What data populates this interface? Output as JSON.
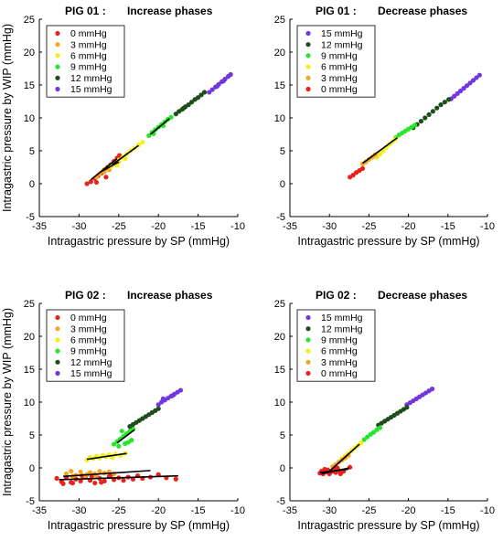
{
  "chart_data": [
    {
      "type": "scatter",
      "panel": "top-left",
      "title_left": "PIG 01 :",
      "title_right": "Increase phases",
      "xlabel": "Intragastric pressure by SP (mmHg)",
      "ylabel": "Intragastric pressure by WIP (mmHg)",
      "xlim": [
        -35,
        -10
      ],
      "ylim": [
        -5,
        25
      ],
      "xticks": [
        -35,
        -30,
        -25,
        -20,
        -15,
        -10
      ],
      "yticks": [
        -5,
        0,
        5,
        10,
        15,
        20,
        25
      ],
      "grid": false,
      "legend_position": "top-left",
      "series": [
        {
          "name": "0 mmHg",
          "color": "#e8231e",
          "x": [
            -29.0,
            -28.5,
            -28.0,
            -27.6,
            -27.2,
            -26.8,
            -26.4,
            -26.0,
            -25.6,
            -25.2,
            -24.9,
            -27.8,
            -26.6
          ],
          "y": [
            0.0,
            0.3,
            0.8,
            1.2,
            1.6,
            2.1,
            2.5,
            2.9,
            3.4,
            3.9,
            4.3,
            0.2,
            1.0
          ]
        },
        {
          "name": "3 mmHg",
          "color": "#f5a623",
          "x": [
            -27.8,
            -27.4,
            -27.0,
            -26.6,
            -26.2,
            -25.8,
            -25.4,
            -25.0,
            -26.8,
            -26.2
          ],
          "y": [
            1.0,
            1.5,
            1.9,
            2.3,
            2.6,
            2.9,
            3.1,
            3.4,
            1.8,
            2.1
          ]
        },
        {
          "name": "6 mmHg",
          "color": "#f4ee1a",
          "x": [
            -26.0,
            -25.5,
            -25.0,
            -24.5,
            -24.0,
            -23.5,
            -23.0,
            -22.5,
            -22.0,
            -25.2,
            -24.2
          ],
          "y": [
            2.6,
            3.0,
            3.6,
            4.0,
            4.5,
            5.0,
            5.4,
            5.9,
            6.3,
            2.8,
            3.8
          ]
        },
        {
          "name": "9 mmHg",
          "color": "#26e62a",
          "x": [
            -21.2,
            -20.8,
            -20.4,
            -20.0,
            -19.6,
            -19.2,
            -18.8,
            -18.4,
            -20.6,
            -19.4
          ],
          "y": [
            7.3,
            7.8,
            8.2,
            8.6,
            9.0,
            9.4,
            9.8,
            10.1,
            7.6,
            8.8
          ]
        },
        {
          "name": "12 mmHg",
          "color": "#1d4d1a",
          "x": [
            -17.8,
            -17.4,
            -17.0,
            -16.6,
            -16.2,
            -15.8,
            -15.4,
            -15.0,
            -14.6,
            -14.2,
            -16.8
          ],
          "y": [
            10.6,
            11.0,
            11.3,
            11.7,
            12.0,
            12.4,
            12.8,
            13.1,
            13.5,
            13.9,
            11.5
          ]
        },
        {
          "name": "15 mmHg",
          "color": "#7236e0",
          "x": [
            -13.6,
            -13.2,
            -12.8,
            -12.4,
            -12.0,
            -11.6,
            -11.2,
            -10.9,
            -12.6,
            -11.8
          ],
          "y": [
            13.9,
            14.3,
            14.7,
            15.1,
            15.5,
            15.9,
            16.3,
            16.6,
            14.8,
            15.6
          ]
        }
      ],
      "fit_lines": [
        {
          "x": [
            -28.5,
            -25.2
          ],
          "y": [
            0.6,
            3.8
          ]
        },
        {
          "x": [
            -27.4,
            -25.0
          ],
          "y": [
            1.7,
            3.3
          ]
        },
        {
          "x": [
            -25.8,
            -22.5
          ],
          "y": [
            2.9,
            5.8
          ]
        },
        {
          "x": [
            -21.0,
            -18.6
          ],
          "y": [
            7.5,
            9.9
          ]
        }
      ]
    },
    {
      "type": "scatter",
      "panel": "top-right",
      "title_left": "PIG 01 :",
      "title_right": "Decrease phases",
      "xlabel": "Intragastric pressure by SP (mmHg)",
      "ylabel": "",
      "xlim": [
        -35,
        -10
      ],
      "ylim": [
        -5,
        25
      ],
      "xticks": [
        -35,
        -30,
        -25,
        -20,
        -15,
        -10
      ],
      "yticks": [
        -5,
        0,
        5,
        10,
        15,
        20,
        25
      ],
      "grid": false,
      "legend_position": "top-left",
      "series": [
        {
          "name": "15 mmHg",
          "color": "#7236e0",
          "x": [
            -14.6,
            -14.2,
            -13.8,
            -13.4,
            -13.0,
            -12.6,
            -12.2,
            -11.8,
            -11.4,
            -11.0
          ],
          "y": [
            12.9,
            13.3,
            13.7,
            14.1,
            14.5,
            14.9,
            15.3,
            15.7,
            16.1,
            16.5
          ]
        },
        {
          "name": "12 mmHg",
          "color": "#1d4d1a",
          "x": [
            -19.4,
            -18.9,
            -18.4,
            -17.9,
            -17.4,
            -16.9,
            -16.4,
            -15.9,
            -15.4,
            -14.9
          ],
          "y": [
            8.5,
            9.0,
            9.5,
            10.0,
            10.5,
            11.0,
            11.5,
            12.0,
            12.4,
            12.8
          ]
        },
        {
          "name": "9 mmHg",
          "color": "#26e62a",
          "x": [
            -21.6,
            -21.2,
            -20.8,
            -20.4,
            -20.0,
            -19.6,
            -19.2
          ],
          "y": [
            7.0,
            7.4,
            7.7,
            8.0,
            8.3,
            8.6,
            8.9
          ]
        },
        {
          "name": "6 mmHg",
          "color": "#f4ee1a",
          "x": [
            -24.0,
            -23.6,
            -23.2,
            -22.8,
            -22.4,
            -22.0,
            -21.6
          ],
          "y": [
            4.0,
            4.5,
            5.0,
            5.5,
            6.0,
            6.4,
            6.8
          ]
        },
        {
          "name": "3 mmHg",
          "color": "#f5a623",
          "x": [
            -25.8,
            -25.4,
            -25.0,
            -24.6,
            -24.2
          ],
          "y": [
            3.0,
            3.3,
            3.7,
            4.0,
            4.4
          ]
        },
        {
          "name": "0 mmHg",
          "color": "#e8231e",
          "x": [
            -27.4,
            -27.0,
            -26.6,
            -26.2,
            -25.8
          ],
          "y": [
            1.0,
            1.3,
            1.7,
            2.0,
            2.3
          ]
        }
      ],
      "fit_lines": [
        {
          "x": [
            -25.8,
            -21.4
          ],
          "y": [
            3.1,
            7.0
          ]
        }
      ]
    },
    {
      "type": "scatter",
      "panel": "bottom-left",
      "title_left": "PIG 02 :",
      "title_right": "Increase phases",
      "xlabel": "Intragastric pressure by SP (mmHg)",
      "ylabel": "Intragastric pressure by WIP (mmHg)",
      "xlim": [
        -35,
        -10
      ],
      "ylim": [
        -5,
        25
      ],
      "xticks": [
        -35,
        -30,
        -25,
        -20,
        -15,
        -10
      ],
      "yticks": [
        -5,
        0,
        5,
        10,
        15,
        20,
        25
      ],
      "grid": false,
      "legend_position": "top-left",
      "series": [
        {
          "name": "0 mmHg",
          "color": "#e8231e",
          "x": [
            -32.8,
            -32.2,
            -31.6,
            -31.0,
            -30.4,
            -29.8,
            -29.2,
            -28.6,
            -28.0,
            -27.4,
            -26.8,
            -26.2,
            -25.6,
            -25.0,
            -24.4,
            -23.8,
            -23.2,
            -22.6,
            -22.0,
            -21.0,
            -20.0,
            -19.0,
            -17.8,
            -32.0,
            -30.8,
            -29.6,
            -28.4,
            -27.2,
            -26.0
          ],
          "y": [
            -1.6,
            -2.1,
            -1.5,
            -2.2,
            -1.7,
            -2.0,
            -1.4,
            -1.9,
            -2.3,
            -1.6,
            -2.0,
            -1.3,
            -1.8,
            -1.5,
            -1.9,
            -1.4,
            -1.7,
            -1.2,
            -1.6,
            -1.4,
            -1.0,
            -1.5,
            -1.7,
            -2.4,
            -2.3,
            -1.2,
            -1.3,
            -2.2,
            -1.1
          ]
        },
        {
          "name": "3 mmHg",
          "color": "#f5a623",
          "x": [
            -31.6,
            -31.0,
            -30.4,
            -29.8,
            -29.2,
            -28.6,
            -28.0,
            -27.4,
            -26.8,
            -26.2,
            -25.6,
            -30.8,
            -29.0,
            -27.8
          ],
          "y": [
            -0.9,
            -0.5,
            -1.1,
            -0.6,
            -1.2,
            -0.7,
            -0.9,
            -0.5,
            -0.8,
            -0.6,
            -0.9,
            -1.3,
            -1.0,
            -1.2
          ]
        },
        {
          "name": "6 mmHg",
          "color": "#f4ee1a",
          "x": [
            -29.0,
            -28.6,
            -28.2,
            -27.8,
            -27.4,
            -27.0,
            -26.6,
            -26.2,
            -25.8,
            -25.4,
            -24.8,
            -24.2
          ],
          "y": [
            1.2,
            1.6,
            1.4,
            1.8,
            1.5,
            1.9,
            1.7,
            2.0,
            1.6,
            2.1,
            1.9,
            2.2
          ]
        },
        {
          "name": "9 mmHg",
          "color": "#26e62a",
          "x": [
            -25.6,
            -25.2,
            -24.8,
            -24.4,
            -24.0,
            -23.6,
            -23.2,
            -25.0,
            -24.2,
            -23.4,
            -24.6,
            -23.8
          ],
          "y": [
            3.6,
            4.0,
            4.4,
            4.8,
            5.2,
            5.6,
            5.9,
            3.3,
            3.7,
            4.2,
            5.6,
            3.9
          ]
        },
        {
          "name": "12 mmHg",
          "color": "#1d4d1a",
          "x": [
            -23.6,
            -23.2,
            -22.8,
            -22.4,
            -22.0,
            -21.6,
            -21.2,
            -20.8,
            -20.4,
            -20.0
          ],
          "y": [
            6.3,
            6.6,
            6.9,
            7.2,
            7.5,
            7.8,
            8.1,
            8.4,
            8.7,
            9.0
          ]
        },
        {
          "name": "15 mmHg",
          "color": "#7236e0",
          "x": [
            -20.0,
            -19.6,
            -19.2,
            -18.8,
            -18.4,
            -18.0,
            -17.6,
            -17.2,
            -19.4,
            -18.2
          ],
          "y": [
            9.6,
            10.0,
            10.3,
            10.6,
            10.9,
            11.2,
            11.5,
            11.8,
            10.5,
            11.0
          ]
        }
      ],
      "fit_lines": [
        {
          "x": [
            -32.5,
            -17.5
          ],
          "y": [
            -1.8,
            -1.2
          ]
        },
        {
          "x": [
            -32.0,
            -21.0
          ],
          "y": [
            -1.3,
            -0.4
          ]
        },
        {
          "x": [
            -29.0,
            -24.0
          ],
          "y": [
            1.3,
            2.2
          ]
        },
        {
          "x": [
            -25.2,
            -23.0
          ],
          "y": [
            3.8,
            5.8
          ]
        }
      ]
    },
    {
      "type": "scatter",
      "panel": "bottom-right",
      "title_left": "PIG 02 :",
      "title_right": "Decrease phases",
      "xlabel": "Intragastric pressure by SP (mmHg)",
      "ylabel": "",
      "xlim": [
        -35,
        -10
      ],
      "ylim": [
        -5,
        25
      ],
      "xticks": [
        -35,
        -30,
        -25,
        -20,
        -15,
        -10
      ],
      "yticks": [
        -5,
        0,
        5,
        10,
        15,
        20,
        25
      ],
      "grid": false,
      "legend_position": "top-left",
      "series": [
        {
          "name": "15 mmHg",
          "color": "#7236e0",
          "x": [
            -20.2,
            -19.8,
            -19.4,
            -19.0,
            -18.6,
            -18.2,
            -17.8,
            -17.4,
            -17.0
          ],
          "y": [
            9.6,
            9.9,
            10.2,
            10.5,
            10.8,
            11.1,
            11.4,
            11.7,
            12.0
          ]
        },
        {
          "name": "12 mmHg",
          "color": "#1d4d1a",
          "x": [
            -23.8,
            -23.4,
            -23.0,
            -22.6,
            -22.2,
            -21.8,
            -21.4,
            -21.0,
            -20.6,
            -20.2
          ],
          "y": [
            6.5,
            6.8,
            7.1,
            7.4,
            7.7,
            8.0,
            8.3,
            8.6,
            8.9,
            9.2
          ]
        },
        {
          "name": "9 mmHg",
          "color": "#26e62a",
          "x": [
            -25.6,
            -25.2,
            -24.8,
            -24.4,
            -24.0,
            -23.6
          ],
          "y": [
            4.3,
            4.7,
            5.1,
            5.4,
            5.8,
            6.1
          ]
        },
        {
          "name": "6 mmHg",
          "color": "#f4ee1a",
          "x": [
            -28.4,
            -28.0,
            -27.6,
            -27.2,
            -26.8,
            -26.4,
            -26.0
          ],
          "y": [
            1.4,
            1.8,
            2.2,
            2.6,
            3.0,
            3.4,
            3.8
          ]
        },
        {
          "name": "3 mmHg",
          "color": "#f5a623",
          "x": [
            -29.6,
            -29.2,
            -28.8,
            -28.4,
            -28.0,
            -27.6
          ],
          "y": [
            0.2,
            0.5,
            0.9,
            1.2,
            1.5,
            1.9
          ]
        },
        {
          "name": "0 mmHg",
          "color": "#e8231e",
          "x": [
            -31.2,
            -30.8,
            -30.4,
            -30.0,
            -29.6,
            -29.2,
            -28.8,
            -28.4,
            -31.0,
            -30.2,
            -29.4,
            -28.6,
            -30.6,
            -29.8,
            -28.2,
            -29.0,
            -27.4
          ],
          "y": [
            -0.8,
            -0.9,
            -0.6,
            -0.9,
            -0.5,
            -0.7,
            -0.4,
            -0.6,
            -0.5,
            -0.3,
            -0.2,
            -0.9,
            -0.2,
            -0.6,
            -0.5,
            0.0,
            0.1
          ]
        }
      ],
      "fit_lines": [
        {
          "x": [
            -31.2,
            -27.6
          ],
          "y": [
            -0.7,
            -0.2
          ]
        },
        {
          "x": [
            -30.0,
            -26.2
          ],
          "y": [
            -0.5,
            3.6
          ]
        },
        {
          "x": [
            -31.0,
            -27.5
          ],
          "y": [
            -0.9,
            0.0
          ]
        }
      ]
    }
  ]
}
